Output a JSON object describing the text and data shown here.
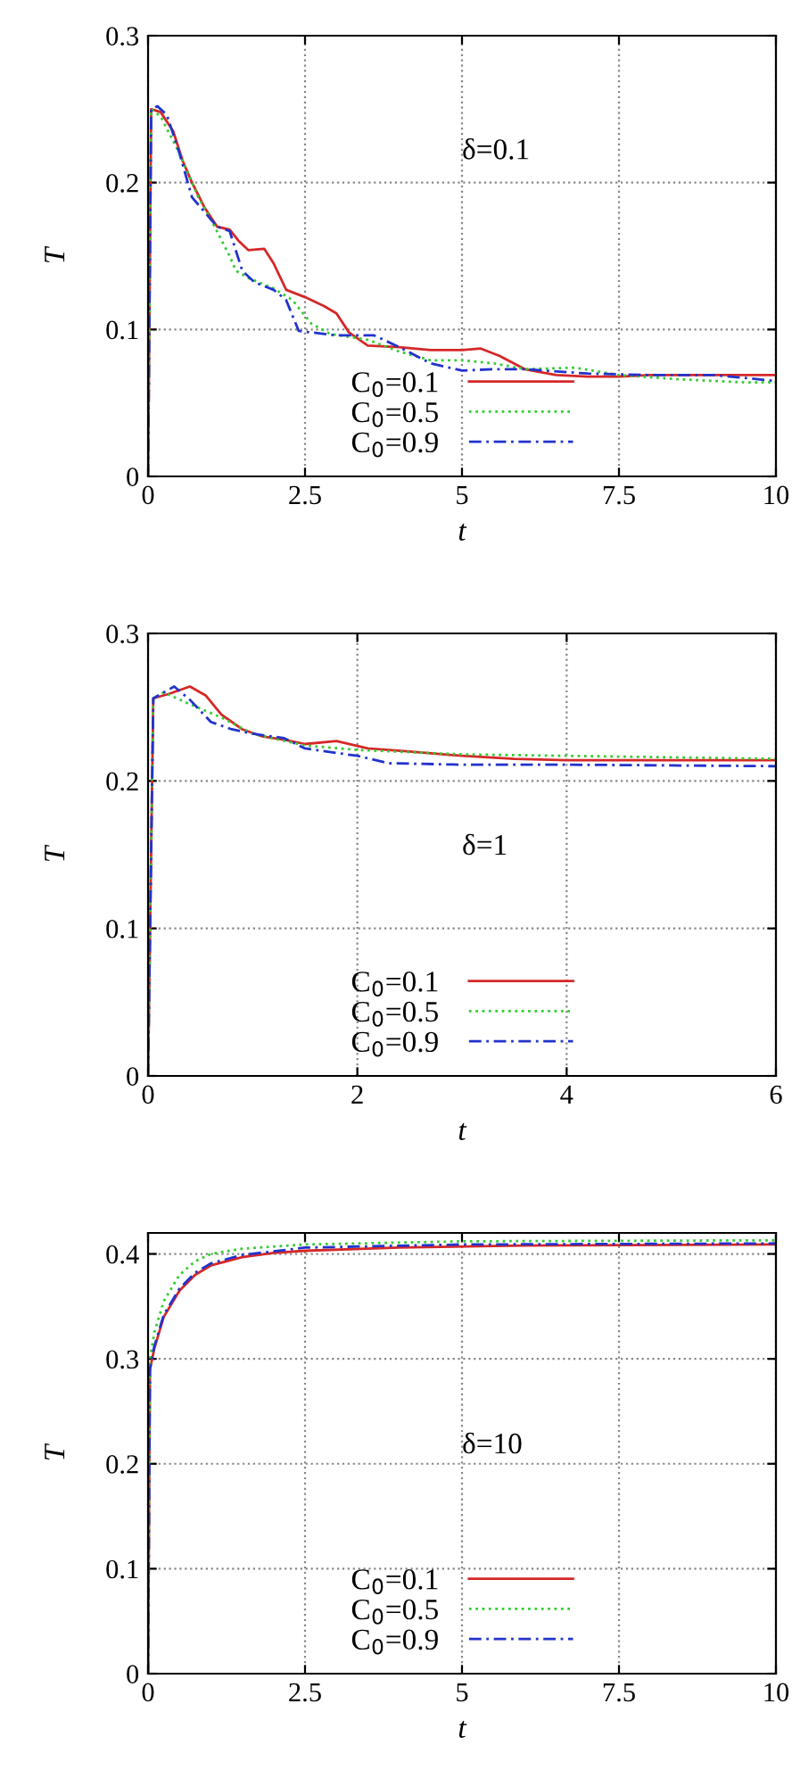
{
  "chart_data": [
    {
      "type": "line",
      "xlabel": "t",
      "ylabel": "T",
      "annotations": [
        "δ=0.1"
      ],
      "xlim": [
        0,
        10
      ],
      "ylim": [
        0,
        0.3
      ],
      "xticks": [
        0,
        2.5,
        5,
        7.5,
        10
      ],
      "yticks": [
        0,
        0.1,
        0.2,
        0.3
      ],
      "grid": true,
      "legend": "bottom",
      "series": [
        {
          "name": "C$_{0}$=0.1",
          "color": "#d62728",
          "line_style": "solid",
          "x": [
            0,
            0.05,
            0.2,
            0.4,
            0.55,
            0.7,
            0.9,
            1.1,
            1.3,
            1.45,
            1.6,
            1.85,
            2.0,
            2.2,
            2.5,
            2.8,
            3.0,
            3.2,
            3.5,
            4.0,
            4.5,
            5.0,
            5.3,
            5.6,
            6.0,
            6.5,
            7.0,
            7.5,
            8,
            9,
            10
          ],
          "values": [
            0,
            0.25,
            0.248,
            0.235,
            0.215,
            0.2,
            0.183,
            0.17,
            0.168,
            0.16,
            0.154,
            0.155,
            0.145,
            0.127,
            0.122,
            0.116,
            0.111,
            0.098,
            0.089,
            0.088,
            0.086,
            0.086,
            0.087,
            0.082,
            0.073,
            0.069,
            0.068,
            0.068,
            0.069,
            0.069,
            0.069
          ]
        },
        {
          "name": "C$_{0}$=0.5",
          "color": "#33cc33",
          "line_style": "dotted",
          "x": [
            0,
            0.05,
            0.2,
            0.5,
            0.8,
            1.0,
            1.3,
            1.4,
            1.6,
            2.0,
            2.3,
            2.6,
            2.9,
            3.5,
            4.0,
            4.5,
            5.0,
            5.5,
            6.0,
            6.8,
            7.5,
            8.5,
            9.5,
            10
          ],
          "values": [
            0,
            0.25,
            0.245,
            0.22,
            0.19,
            0.175,
            0.15,
            0.14,
            0.135,
            0.128,
            0.12,
            0.104,
            0.097,
            0.093,
            0.085,
            0.079,
            0.079,
            0.077,
            0.073,
            0.074,
            0.069,
            0.066,
            0.064,
            0.064
          ]
        },
        {
          "name": "C$_{0}$=0.9",
          "color": "#2233cc",
          "line_style": "dashed",
          "x": [
            0,
            0.05,
            0.15,
            0.3,
            0.5,
            0.7,
            0.9,
            1.1,
            1.3,
            1.5,
            1.7,
            2.0,
            2.2,
            2.4,
            3.0,
            3.6,
            4.0,
            4.5,
            5.0,
            5.5,
            6.0,
            7.0,
            8.0,
            9.0,
            10
          ],
          "values": [
            0,
            0.25,
            0.252,
            0.246,
            0.22,
            0.19,
            0.18,
            0.17,
            0.167,
            0.14,
            0.132,
            0.127,
            0.12,
            0.099,
            0.096,
            0.096,
            0.088,
            0.077,
            0.072,
            0.073,
            0.073,
            0.07,
            0.069,
            0.069,
            0.065
          ]
        }
      ]
    },
    {
      "type": "line",
      "xlabel": "t",
      "ylabel": "T",
      "annotations": [
        "δ=1"
      ],
      "xlim": [
        0,
        6
      ],
      "ylim": [
        0,
        0.3
      ],
      "xticks": [
        0,
        2,
        4,
        6
      ],
      "yticks": [
        0,
        0.1,
        0.2,
        0.3
      ],
      "grid": true,
      "legend": "bottom",
      "series": [
        {
          "name": "C$_{0}$=0.1",
          "color": "#d62728",
          "line_style": "solid",
          "x": [
            0,
            0.05,
            0.2,
            0.4,
            0.55,
            0.7,
            0.9,
            1.1,
            1.3,
            1.5,
            1.8,
            2.1,
            2.5,
            3.0,
            3.5,
            4,
            5,
            6
          ],
          "values": [
            0,
            0.256,
            0.259,
            0.264,
            0.258,
            0.245,
            0.235,
            0.23,
            0.228,
            0.225,
            0.227,
            0.222,
            0.22,
            0.217,
            0.215,
            0.214,
            0.214,
            0.214
          ]
        },
        {
          "name": "C$_{0}$=0.5",
          "color": "#33cc33",
          "line_style": "dotted",
          "x": [
            0,
            0.05,
            0.15,
            0.4,
            0.7,
            1.0,
            1.5,
            2.0,
            3.0,
            4.0,
            5,
            6
          ],
          "values": [
            0,
            0.256,
            0.26,
            0.252,
            0.243,
            0.232,
            0.224,
            0.221,
            0.218,
            0.217,
            0.216,
            0.215
          ]
        },
        {
          "name": "C$_{0}$=0.9",
          "color": "#2233cc",
          "line_style": "dashed",
          "x": [
            0,
            0.05,
            0.25,
            0.4,
            0.6,
            0.8,
            1.0,
            1.3,
            1.5,
            2.0,
            2.3,
            3,
            4,
            6
          ],
          "values": [
            0,
            0.256,
            0.264,
            0.255,
            0.24,
            0.235,
            0.232,
            0.229,
            0.222,
            0.217,
            0.212,
            0.211,
            0.211,
            0.21
          ]
        }
      ]
    },
    {
      "type": "line",
      "xlabel": "t",
      "ylabel": "T",
      "annotations": [
        "δ=10"
      ],
      "xlim": [
        0,
        10
      ],
      "ylim": [
        0,
        0.42
      ],
      "xticks": [
        0,
        2.5,
        5,
        7.5,
        10
      ],
      "yticks": [
        0,
        0.1,
        0.2,
        0.3,
        0.4
      ],
      "grid": true,
      "legend": "bottom",
      "series": [
        {
          "name": "C$_{0}$=0.1",
          "color": "#d62728",
          "line_style": "solid",
          "x": [
            0,
            0.03,
            0.1,
            0.25,
            0.5,
            0.75,
            1.0,
            1.5,
            2,
            2.5,
            4,
            6,
            10
          ],
          "values": [
            0,
            0.29,
            0.31,
            0.34,
            0.365,
            0.38,
            0.389,
            0.397,
            0.401,
            0.403,
            0.406,
            0.408,
            0.409
          ]
        },
        {
          "name": "C$_{0}$=0.5",
          "color": "#33cc33",
          "line_style": "dotted",
          "x": [
            0,
            0.03,
            0.1,
            0.25,
            0.5,
            0.75,
            1.0,
            1.5,
            2.5,
            5,
            10
          ],
          "values": [
            0,
            0.3,
            0.325,
            0.355,
            0.38,
            0.393,
            0.4,
            0.405,
            0.409,
            0.412,
            0.413
          ]
        },
        {
          "name": "C$_{0}$=0.9",
          "color": "#2233cc",
          "line_style": "dashed",
          "x": [
            0,
            0.03,
            0.1,
            0.25,
            0.5,
            0.75,
            1.0,
            1.5,
            2.5,
            5,
            10
          ],
          "values": [
            0,
            0.29,
            0.312,
            0.342,
            0.367,
            0.382,
            0.391,
            0.399,
            0.406,
            0.409,
            0.41
          ]
        }
      ]
    }
  ]
}
